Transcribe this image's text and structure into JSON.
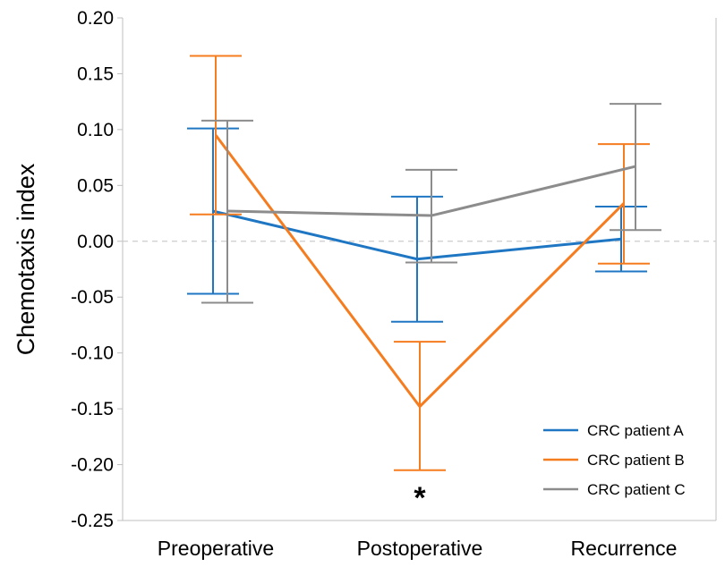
{
  "chart_data": {
    "type": "line",
    "title": "",
    "xlabel": "",
    "ylabel": "Chemotaxis index",
    "categories": [
      "Preoperative",
      "Postoperative",
      "Recurrence"
    ],
    "ylim": [
      -0.25,
      0.2
    ],
    "yticks": [
      0.2,
      0.15,
      0.1,
      0.05,
      0.0,
      -0.05,
      -0.1,
      -0.15,
      -0.2,
      -0.25
    ],
    "ytick_labels": [
      "0.20",
      "0.15",
      "0.10",
      "0.05",
      "0.00",
      "-0.05",
      "-0.10",
      "-0.15",
      "-0.20",
      "-0.25"
    ],
    "reference_line": 0.0,
    "legend_position": "bottom-right",
    "series": [
      {
        "name": "CRC patient A",
        "color": "#1f77c4",
        "values": [
          0.027,
          -0.016,
          0.002
        ],
        "err_upper": [
          0.101,
          0.04,
          0.031
        ],
        "err_lower": [
          -0.047,
          -0.072,
          -0.027
        ]
      },
      {
        "name": "CRC patient B",
        "color": "#f57c1f",
        "values": [
          0.095,
          -0.148,
          0.034
        ],
        "err_upper": [
          0.166,
          -0.09,
          0.087
        ],
        "err_lower": [
          0.024,
          -0.205,
          -0.02
        ]
      },
      {
        "name": "CRC patient C",
        "color": "#8c8c8c",
        "values": [
          0.027,
          0.023,
          0.067
        ],
        "err_upper": [
          0.108,
          0.064,
          0.123
        ],
        "err_lower": [
          -0.055,
          -0.019,
          0.01
        ]
      }
    ],
    "annotations": [
      {
        "text": "*",
        "category": "Postoperative",
        "y": -0.218
      }
    ]
  }
}
